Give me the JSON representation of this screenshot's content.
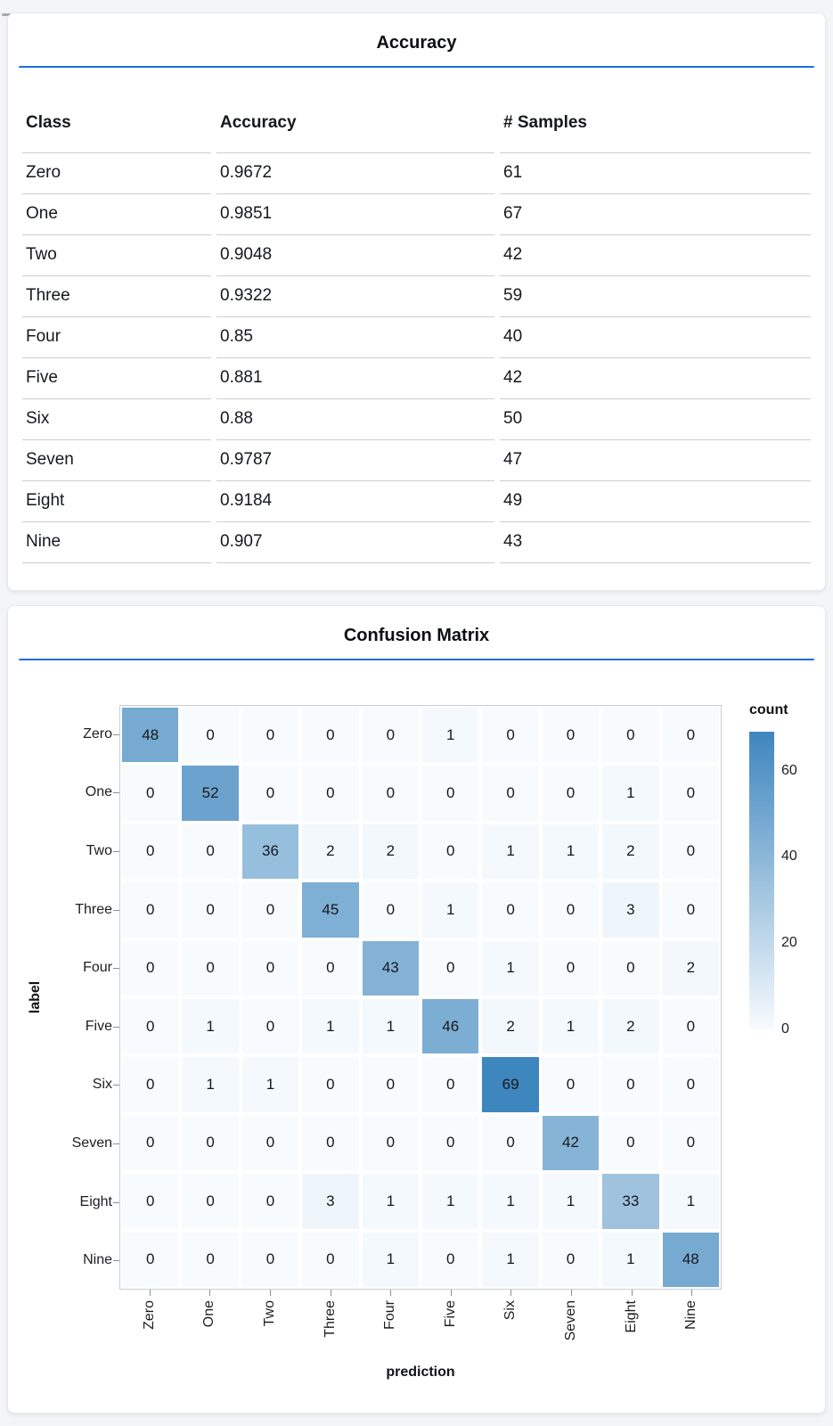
{
  "page": {
    "background": "#f4f5f7",
    "top_bars": {
      "inactive_color": "#a8a8a8",
      "active_color": "#1a73e8"
    },
    "accent_blue": "#1b6fe3"
  },
  "accuracy_card": {
    "title": "Accuracy",
    "table": {
      "columns": [
        "Class",
        "Accuracy",
        "# Samples"
      ],
      "rows": [
        [
          "Zero",
          "0.9672",
          "61"
        ],
        [
          "One",
          "0.9851",
          "67"
        ],
        [
          "Two",
          "0.9048",
          "42"
        ],
        [
          "Three",
          "0.9322",
          "59"
        ],
        [
          "Four",
          "0.85",
          "40"
        ],
        [
          "Five",
          "0.881",
          "42"
        ],
        [
          "Six",
          "0.88",
          "50"
        ],
        [
          "Seven",
          "0.9787",
          "47"
        ],
        [
          "Eight",
          "0.9184",
          "49"
        ],
        [
          "Nine",
          "0.907",
          "43"
        ]
      ]
    }
  },
  "confusion_card": {
    "title": "Confusion Matrix"
  },
  "chart_data": {
    "type": "heatmap",
    "title": "Confusion Matrix",
    "xlabel": "prediction",
    "ylabel": "label",
    "x_categories": [
      "Zero",
      "One",
      "Two",
      "Three",
      "Four",
      "Five",
      "Six",
      "Seven",
      "Eight",
      "Nine"
    ],
    "y_categories": [
      "Zero",
      "One",
      "Two",
      "Three",
      "Four",
      "Five",
      "Six",
      "Seven",
      "Eight",
      "Nine"
    ],
    "values": [
      [
        48,
        0,
        0,
        0,
        0,
        1,
        0,
        0,
        0,
        0
      ],
      [
        0,
        52,
        0,
        0,
        0,
        0,
        0,
        0,
        1,
        0
      ],
      [
        0,
        0,
        36,
        2,
        2,
        0,
        1,
        1,
        2,
        0
      ],
      [
        0,
        0,
        0,
        45,
        0,
        1,
        0,
        0,
        3,
        0
      ],
      [
        0,
        0,
        0,
        0,
        43,
        0,
        1,
        0,
        0,
        2
      ],
      [
        0,
        1,
        0,
        1,
        1,
        46,
        2,
        1,
        2,
        0
      ],
      [
        0,
        1,
        1,
        0,
        0,
        0,
        69,
        0,
        0,
        0
      ],
      [
        0,
        0,
        0,
        0,
        0,
        0,
        0,
        42,
        0,
        0
      ],
      [
        0,
        0,
        0,
        3,
        1,
        1,
        1,
        1,
        33,
        1
      ],
      [
        0,
        0,
        0,
        0,
        1,
        0,
        1,
        0,
        1,
        48
      ]
    ],
    "legend": {
      "title": "count",
      "ticks": [
        0,
        20,
        40,
        60
      ],
      "min": 0,
      "max": 69,
      "position": "right"
    },
    "colors": {
      "low": "#f7fbfe",
      "high": "#3e86be"
    },
    "grid": false
  }
}
